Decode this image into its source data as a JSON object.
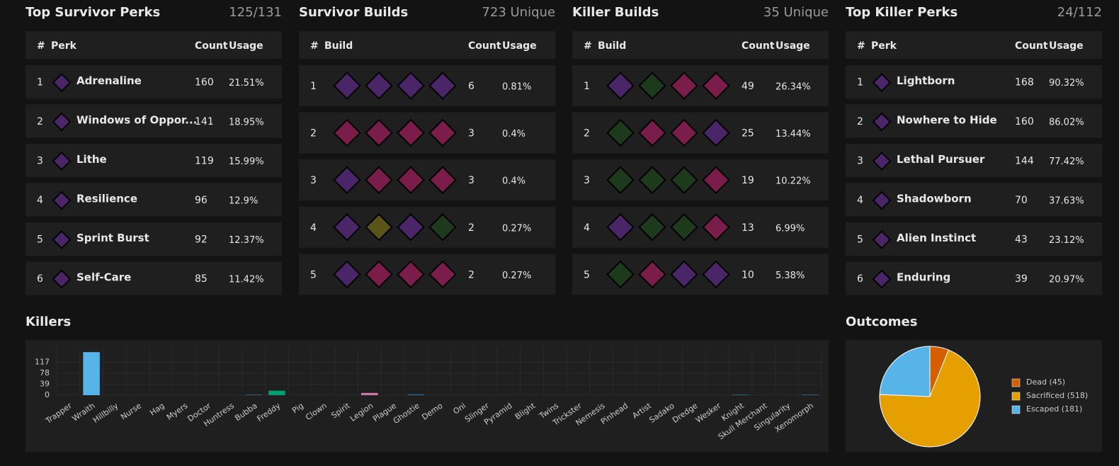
{
  "survivor_perks": {
    "title": "Top Survivor Perks",
    "summary": "125/131",
    "columns": [
      "#",
      "Perk",
      "Count",
      "Usage"
    ],
    "rows": [
      {
        "rank": 1,
        "perk": "Adrenaline",
        "count": 160,
        "usage": "21.51%"
      },
      {
        "rank": 2,
        "perk": "Windows of Oppor...",
        "count": 141,
        "usage": "18.95%"
      },
      {
        "rank": 3,
        "perk": "Lithe",
        "count": 119,
        "usage": "15.99%"
      },
      {
        "rank": 4,
        "perk": "Resilience",
        "count": 96,
        "usage": "12.9%"
      },
      {
        "rank": 5,
        "perk": "Sprint Burst",
        "count": 92,
        "usage": "12.37%"
      },
      {
        "rank": 6,
        "perk": "Self-Care",
        "count": 85,
        "usage": "11.42%"
      }
    ]
  },
  "survivor_builds": {
    "title": "Survivor Builds",
    "summary": "723 Unique",
    "columns": [
      "#",
      "Build",
      "Count",
      "Usage"
    ],
    "rows": [
      {
        "rank": 1,
        "count": 6,
        "usage": "0.81%"
      },
      {
        "rank": 2,
        "count": 3,
        "usage": "0.4%"
      },
      {
        "rank": 3,
        "count": 3,
        "usage": "0.4%"
      },
      {
        "rank": 4,
        "count": 2,
        "usage": "0.27%"
      },
      {
        "rank": 5,
        "count": 2,
        "usage": "0.27%"
      }
    ]
  },
  "killer_builds": {
    "title": "Killer Builds",
    "summary": "35 Unique",
    "columns": [
      "#",
      "Build",
      "Count",
      "Usage"
    ],
    "rows": [
      {
        "rank": 1,
        "count": 49,
        "usage": "26.34%"
      },
      {
        "rank": 2,
        "count": 25,
        "usage": "13.44%"
      },
      {
        "rank": 3,
        "count": 19,
        "usage": "10.22%"
      },
      {
        "rank": 4,
        "count": 13,
        "usage": "6.99%"
      },
      {
        "rank": 5,
        "count": 10,
        "usage": "5.38%"
      }
    ]
  },
  "killer_perks": {
    "title": "Top Killer Perks",
    "summary": "24/112",
    "columns": [
      "#",
      "Perk",
      "Count",
      "Usage"
    ],
    "rows": [
      {
        "rank": 1,
        "perk": "Lightborn",
        "count": 168,
        "usage": "90.32%"
      },
      {
        "rank": 2,
        "perk": "Nowhere to Hide",
        "count": 160,
        "usage": "86.02%"
      },
      {
        "rank": 3,
        "perk": "Lethal Pursuer",
        "count": 144,
        "usage": "77.42%"
      },
      {
        "rank": 4,
        "perk": "Shadowborn",
        "count": 70,
        "usage": "37.63%"
      },
      {
        "rank": 5,
        "perk": "Alien Instinct",
        "count": 43,
        "usage": "23.12%"
      },
      {
        "rank": 6,
        "perk": "Enduring",
        "count": 39,
        "usage": "20.97%"
      }
    ]
  },
  "chart_data": [
    {
      "type": "bar",
      "title": "Killers",
      "categories": [
        "Trapper",
        "Wraith",
        "Hillbilly",
        "Nurse",
        "Hag",
        "Myers",
        "Doctor",
        "Huntress",
        "Bubba",
        "Freddy",
        "Pig",
        "Clown",
        "Spirit",
        "Legion",
        "Plague",
        "Ghostie",
        "Demo",
        "Oni",
        "Slinger",
        "Pyramid",
        "Blight",
        "Twins",
        "Trickster",
        "Nemesis",
        "Pinhead",
        "Artist",
        "Sadako",
        "Dredge",
        "Wesker",
        "Knight",
        "Skull Merchant",
        "Singularity",
        "Xenomorph"
      ],
      "values": [
        0,
        153,
        0,
        0,
        0,
        0,
        0,
        0,
        2,
        16,
        0,
        0,
        0,
        8,
        0,
        3,
        0,
        0,
        0,
        0,
        0,
        0,
        0,
        0,
        0,
        0,
        0,
        0,
        0,
        2,
        0,
        0,
        2
      ],
      "colors": [
        "#2c6e98",
        "#56b4e9",
        "#2c6e98",
        "#2c6e98",
        "#2c6e98",
        "#2c6e98",
        "#2c6e98",
        "#2c6e98",
        "#2c6e98",
        "#009e73",
        "#2c6e98",
        "#2c6e98",
        "#2c6e98",
        "#cc79a7",
        "#2c6e98",
        "#2c6e98",
        "#2c6e98",
        "#2c6e98",
        "#2c6e98",
        "#2c6e98",
        "#2c6e98",
        "#2c6e98",
        "#2c6e98",
        "#2c6e98",
        "#2c6e98",
        "#2c6e98",
        "#2c6e98",
        "#2c6e98",
        "#2c6e98",
        "#2c6e98",
        "#2c6e98",
        "#2c6e98",
        "#2c6e98"
      ],
      "ylim": [
        0,
        156
      ],
      "yticks": [
        0,
        39,
        78,
        117
      ],
      "grid": true
    },
    {
      "type": "pie",
      "title": "Outcomes",
      "values": [
        45,
        518,
        181
      ],
      "value_labels": [
        "Dead (45)",
        "Sacrificed (518)",
        "Escaped (181)"
      ],
      "colors": [
        "#d55e00",
        "#e69f00",
        "#56b4e9"
      ],
      "legend": "right"
    }
  ]
}
